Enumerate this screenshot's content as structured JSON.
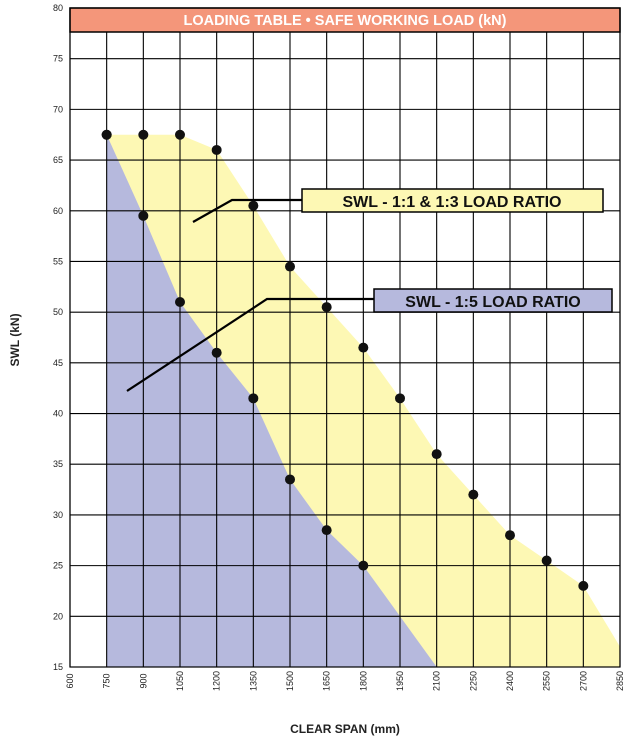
{
  "chart_data": {
    "type": "area",
    "title": "LOADING TABLE • SAFE WORKING LOAD (kN)",
    "xlabel": "CLEAR SPAN (mm)",
    "ylabel": "SWL (kN)",
    "xlim": [
      600,
      2850
    ],
    "ylim": [
      15,
      80
    ],
    "x_ticks": [
      600,
      750,
      900,
      1050,
      1200,
      1350,
      1500,
      1650,
      1800,
      1950,
      2100,
      2250,
      2400,
      2550,
      2700,
      2850
    ],
    "y_ticks": [
      15,
      20,
      25,
      30,
      35,
      40,
      45,
      50,
      55,
      60,
      65,
      70,
      75,
      80
    ],
    "grid": true,
    "series": [
      {
        "name": "SWL - 1:1 & 1:3 LOAD RATIO",
        "color": "#fdf8b4",
        "points": [
          [
            750,
            67.5
          ],
          [
            900,
            67.5
          ],
          [
            1050,
            67.5
          ],
          [
            1200,
            66
          ],
          [
            1350,
            60.5
          ],
          [
            1500,
            54.5
          ],
          [
            1650,
            50.5
          ],
          [
            1800,
            46.5
          ],
          [
            1950,
            41.5
          ],
          [
            2100,
            36
          ],
          [
            2250,
            32
          ],
          [
            2400,
            28
          ],
          [
            2550,
            25.5
          ],
          [
            2700,
            23
          ]
        ],
        "area_extends_to": [
          [
            2850,
            17
          ]
        ]
      },
      {
        "name": "SWL - 1:5 LOAD RATIO",
        "color": "#b6b9dd",
        "points": [
          [
            750,
            67.5
          ],
          [
            900,
            59.5
          ],
          [
            1050,
            51
          ],
          [
            1200,
            46
          ],
          [
            1350,
            41.5
          ],
          [
            1500,
            33.5
          ],
          [
            1650,
            28.5
          ],
          [
            1800,
            25
          ]
        ],
        "area_extends_to": [
          [
            2100,
            15
          ]
        ]
      }
    ]
  },
  "title_bar_color": "#f4967a"
}
